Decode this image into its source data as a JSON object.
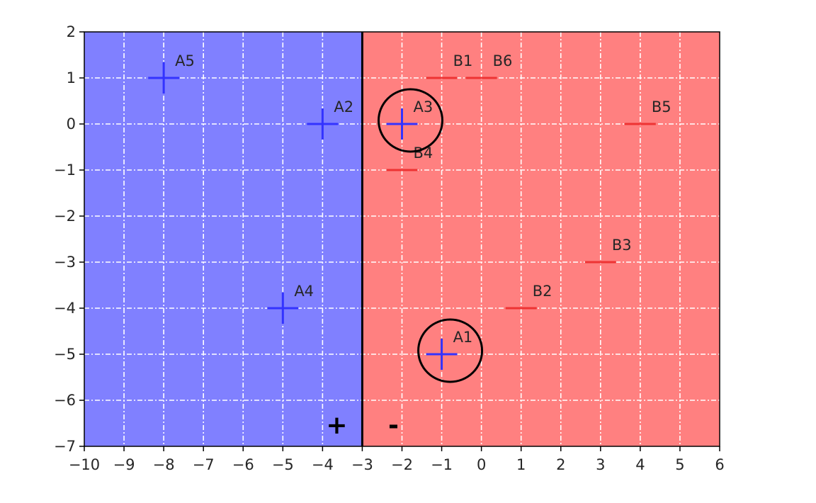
{
  "chart_data": {
    "type": "scatter",
    "title": "",
    "xlabel": "",
    "ylabel": "",
    "xlim": [
      -10,
      6
    ],
    "ylim": [
      -7,
      2
    ],
    "grid": true,
    "xticks": [
      -10,
      -9,
      -8,
      -7,
      -6,
      -5,
      -4,
      -3,
      -2,
      -1,
      0,
      1,
      2,
      3,
      4,
      5,
      6
    ],
    "yticks": [
      2,
      1,
      0,
      -1,
      -2,
      -3,
      -4,
      -5,
      -6,
      -7
    ],
    "xtick_labels": [
      "−10",
      "−9",
      "−8",
      "−7",
      "−6",
      "−5",
      "−4",
      "−3",
      "−2",
      "−1",
      "0",
      "1",
      "2",
      "3",
      "4",
      "5",
      "6"
    ],
    "ytick_labels": [
      "2",
      "1",
      "0",
      "−1",
      "−2",
      "−3",
      "−4",
      "−5",
      "−6",
      "−7"
    ],
    "decision_boundary": {
      "x": -3
    },
    "regions": [
      {
        "side": "left",
        "color": "#8080ff",
        "symbol": "+"
      },
      {
        "side": "right",
        "color": "#ff8080",
        "symbol": "-"
      }
    ],
    "series": [
      {
        "marker": "+",
        "color": "#3333ff",
        "points": [
          {
            "label": "A1",
            "x": -1,
            "y": -5,
            "circled": true
          },
          {
            "label": "A2",
            "x": -4,
            "y": 0,
            "circled": false
          },
          {
            "label": "A3",
            "x": -2,
            "y": 0,
            "circled": true
          },
          {
            "label": "A4",
            "x": -5,
            "y": -4,
            "circled": false
          },
          {
            "label": "A5",
            "x": -8,
            "y": 1,
            "circled": false
          }
        ]
      },
      {
        "marker": "-",
        "color": "#ee3333",
        "points": [
          {
            "label": "B1",
            "x": -1,
            "y": 1
          },
          {
            "label": "B2",
            "x": 1,
            "y": -4
          },
          {
            "label": "B3",
            "x": 3,
            "y": -3
          },
          {
            "label": "B4",
            "x": -2,
            "y": -1
          },
          {
            "label": "B5",
            "x": 4,
            "y": 0
          },
          {
            "label": "B6",
            "x": 0,
            "y": 1
          }
        ]
      }
    ]
  }
}
